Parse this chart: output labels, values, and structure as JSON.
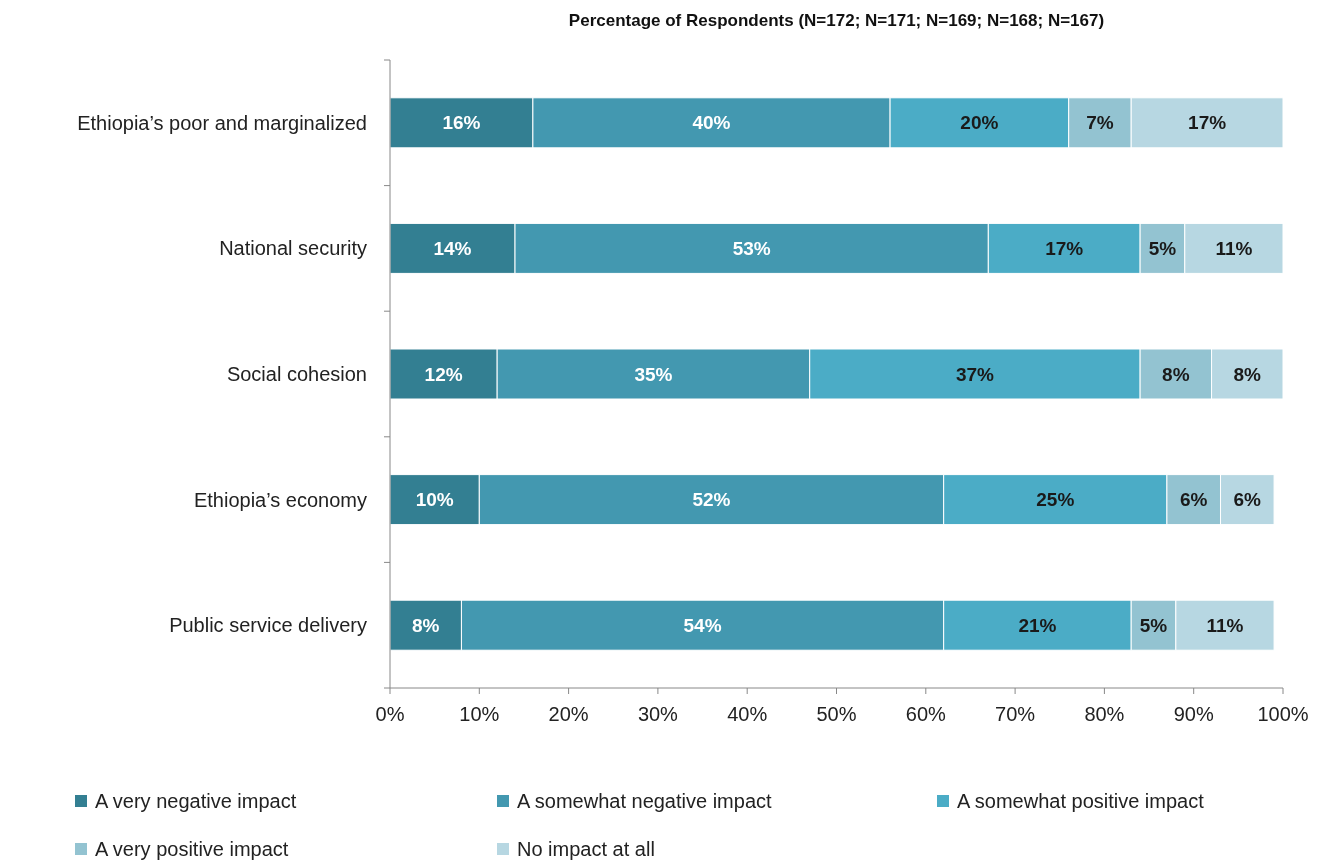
{
  "chart_data": {
    "type": "bar",
    "orientation": "horizontal",
    "stacked": true,
    "title": "Percentage of Respondents (N=172; N=171; N=169; N=168; N=167)",
    "categories": [
      "Ethiopia’s poor and marginalized",
      "National security",
      "Social cohesion",
      "Ethiopia’s economy",
      "Public service delivery"
    ],
    "series": [
      {
        "name": "A very negative impact",
        "color": "#337f92",
        "values": [
          16,
          14,
          12,
          10,
          8
        ],
        "value_labels": [
          "16%",
          "14%",
          "12%",
          "10%",
          "8%"
        ]
      },
      {
        "name": "A somewhat negative impact",
        "color": "#4398b0",
        "values": [
          40,
          53,
          35,
          52,
          54
        ],
        "value_labels": [
          "40%",
          "53%",
          "35%",
          "52%",
          "54%"
        ]
      },
      {
        "name": "A somewhat positive impact",
        "color": "#4bacc6",
        "values": [
          20,
          17,
          37,
          25,
          21
        ],
        "value_labels": [
          "20%",
          "17%",
          "37%",
          "25%",
          "21%"
        ]
      },
      {
        "name": "A very positive impact",
        "color": "#93c3d1",
        "values": [
          7,
          5,
          8,
          6,
          5
        ],
        "value_labels": [
          "7%",
          "5%",
          "8%",
          "6%",
          "5%"
        ]
      },
      {
        "name": "No impact at all",
        "color": "#b7d7e2",
        "values": [
          17,
          11,
          8,
          6,
          11
        ],
        "value_labels": [
          "17%",
          "11%",
          "8%",
          "6%",
          "11%"
        ]
      }
    ],
    "xlim": [
      0,
      100
    ],
    "xticks": [
      {
        "value": 0,
        "label": "0%"
      },
      {
        "value": 10,
        "label": "10%"
      },
      {
        "value": 20,
        "label": "20%"
      },
      {
        "value": 30,
        "label": "30%"
      },
      {
        "value": 40,
        "label": "40%"
      },
      {
        "value": 50,
        "label": "50%"
      },
      {
        "value": 60,
        "label": "60%"
      },
      {
        "value": 70,
        "label": "70%"
      },
      {
        "value": 80,
        "label": "80%"
      },
      {
        "value": 90,
        "label": "90%"
      },
      {
        "value": 100,
        "label": "100%"
      }
    ],
    "legend": "bottom",
    "grid": false
  }
}
